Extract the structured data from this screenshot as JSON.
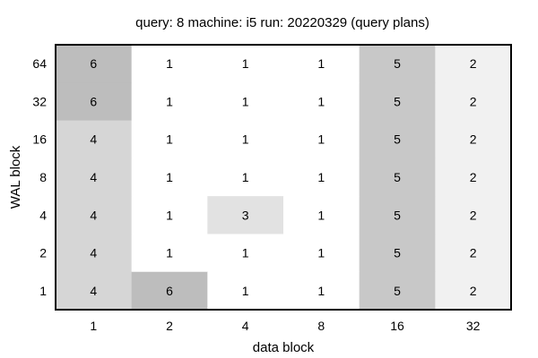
{
  "chart_data": {
    "type": "heatmap",
    "title": "query: 8  machine: i5  run: 20220329  (query plans)",
    "xlabel": "data block",
    "ylabel": "WAL block",
    "x_categories": [
      "1",
      "2",
      "4",
      "8",
      "16",
      "32"
    ],
    "y_categories": [
      "1",
      "2",
      "4",
      "8",
      "16",
      "32",
      "64"
    ],
    "rows": [
      {
        "y": "64",
        "values": [
          6,
          1,
          1,
          1,
          5,
          2
        ]
      },
      {
        "y": "32",
        "values": [
          6,
          1,
          1,
          1,
          5,
          2
        ]
      },
      {
        "y": "16",
        "values": [
          4,
          1,
          1,
          1,
          5,
          2
        ]
      },
      {
        "y": "8",
        "values": [
          4,
          1,
          1,
          1,
          5,
          2
        ]
      },
      {
        "y": "4",
        "values": [
          4,
          1,
          3,
          1,
          5,
          2
        ]
      },
      {
        "y": "2",
        "values": [
          4,
          1,
          1,
          1,
          5,
          2
        ]
      },
      {
        "y": "1",
        "values": [
          4,
          6,
          1,
          1,
          5,
          2
        ]
      }
    ],
    "value_range": [
      1,
      6
    ],
    "color_scale": [
      "#ffffff",
      "#bdbdbd"
    ],
    "grid": false,
    "legend": "none"
  }
}
